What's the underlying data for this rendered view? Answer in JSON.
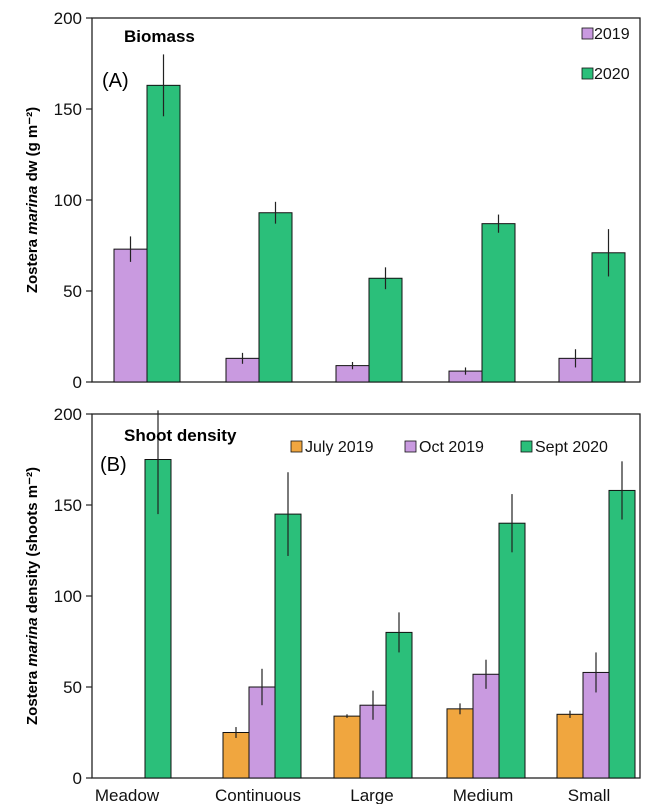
{
  "chart_data": [
    {
      "type": "bar",
      "title": "Biomass",
      "panel_label": "(A)",
      "ylabel": "Zostera marina dw (g m⁻²)",
      "ylabel_parts": [
        "Zostera ",
        "marina",
        " dw (g m⁻²)"
      ],
      "categories": [
        "Meadow",
        "Continuous",
        "Large",
        "Medium",
        "Small"
      ],
      "ylim": [
        0,
        200
      ],
      "yticks": [
        0,
        50,
        100,
        150,
        200
      ],
      "legend_position": "top-right",
      "series": [
        {
          "name": "2019",
          "color": "#c99ae0",
          "values": [
            73,
            13,
            9,
            6,
            13
          ],
          "errors": [
            7,
            3,
            2,
            2,
            5
          ]
        },
        {
          "name": "2020",
          "color": "#2bbf7a",
          "values": [
            163,
            93,
            57,
            87,
            71
          ],
          "errors": [
            17,
            6,
            6,
            5,
            13
          ]
        }
      ]
    },
    {
      "type": "bar",
      "title": "Shoot density",
      "panel_label": "(B)",
      "ylabel": "Zostera marina density (shoots m⁻²)",
      "ylabel_parts": [
        "Zostera ",
        "marina",
        " density (shoots m⁻²)"
      ],
      "categories": [
        "Meadow",
        "Continuous",
        "Large",
        "Medium",
        "Small"
      ],
      "ylim": [
        0,
        200
      ],
      "yticks": [
        0,
        50,
        100,
        150,
        200
      ],
      "legend_position": "top",
      "series": [
        {
          "name": "July 2019",
          "color": "#f0a63f",
          "values": [
            null,
            25,
            34,
            38,
            35
          ],
          "errors": [
            null,
            3,
            1,
            3,
            2
          ]
        },
        {
          "name": "Oct 2019",
          "color": "#c99ae0",
          "values": [
            null,
            50,
            40,
            57,
            58
          ],
          "errors": [
            null,
            10,
            8,
            8,
            11
          ]
        },
        {
          "name": "Sept 2020",
          "color": "#2bbf7a",
          "values": [
            175,
            145,
            80,
            140,
            158
          ],
          "errors": [
            30,
            23,
            11,
            16,
            16
          ]
        }
      ]
    }
  ]
}
